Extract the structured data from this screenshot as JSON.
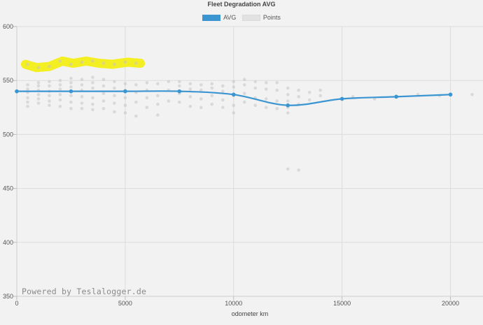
{
  "chart_data": {
    "type": "line",
    "title": "Fleet Degradation AVG",
    "xlabel": "odometer km",
    "ylabel": "",
    "xlim": [
      0,
      21500
    ],
    "ylim": [
      350,
      600
    ],
    "xticks": [
      0,
      5000,
      10000,
      15000,
      20000
    ],
    "yticks": [
      350,
      400,
      450,
      500,
      550,
      600
    ],
    "grid": true,
    "legend_position": "top-center",
    "series": [
      {
        "name": "AVG",
        "style": "line",
        "color": "#3a95d1",
        "points": [
          [
            0,
            540
          ],
          [
            2500,
            540
          ],
          [
            5000,
            540
          ],
          [
            7500,
            540
          ],
          [
            10000,
            537
          ],
          [
            12500,
            527
          ],
          [
            15000,
            533
          ],
          [
            17500,
            535
          ],
          [
            20000,
            537
          ]
        ]
      },
      {
        "name": "Points",
        "style": "scatter",
        "color": "#c4c4c4",
        "points": [
          [
            500,
            565
          ],
          [
            1000,
            562
          ],
          [
            1500,
            563
          ],
          [
            2000,
            568
          ],
          [
            2500,
            565
          ],
          [
            3000,
            567
          ],
          [
            3500,
            568
          ],
          [
            4000,
            566
          ],
          [
            4500,
            565
          ],
          [
            5000,
            567
          ],
          [
            5500,
            566
          ],
          [
            500,
            546
          ],
          [
            500,
            542
          ],
          [
            500,
            539
          ],
          [
            500,
            534
          ],
          [
            500,
            530
          ],
          [
            500,
            526
          ],
          [
            1000,
            548
          ],
          [
            1000,
            545
          ],
          [
            1000,
            541
          ],
          [
            1000,
            537
          ],
          [
            1000,
            533
          ],
          [
            1000,
            529
          ],
          [
            1500,
            549
          ],
          [
            1500,
            545
          ],
          [
            1500,
            540
          ],
          [
            1500,
            536
          ],
          [
            1500,
            531
          ],
          [
            1500,
            527
          ],
          [
            2000,
            550
          ],
          [
            2000,
            546
          ],
          [
            2000,
            542
          ],
          [
            2000,
            537
          ],
          [
            2000,
            532
          ],
          [
            2000,
            526
          ],
          [
            2500,
            552
          ],
          [
            2500,
            548
          ],
          [
            2500,
            544
          ],
          [
            2500,
            536
          ],
          [
            2500,
            530
          ],
          [
            2500,
            524
          ],
          [
            3000,
            551
          ],
          [
            3000,
            546
          ],
          [
            3000,
            541
          ],
          [
            3000,
            535
          ],
          [
            3000,
            529
          ],
          [
            3000,
            524
          ],
          [
            3500,
            553
          ],
          [
            3500,
            548
          ],
          [
            3500,
            543
          ],
          [
            3500,
            534
          ],
          [
            3500,
            528
          ],
          [
            3500,
            523
          ],
          [
            4000,
            551
          ],
          [
            4000,
            545
          ],
          [
            4000,
            538
          ],
          [
            4000,
            531
          ],
          [
            4000,
            524
          ],
          [
            4500,
            549
          ],
          [
            4500,
            543
          ],
          [
            4500,
            536
          ],
          [
            4500,
            529
          ],
          [
            4500,
            521
          ],
          [
            5000,
            547
          ],
          [
            5000,
            541
          ],
          [
            5000,
            534
          ],
          [
            5000,
            527
          ],
          [
            5000,
            520
          ],
          [
            5500,
            546
          ],
          [
            5500,
            539
          ],
          [
            5500,
            530
          ],
          [
            5500,
            517
          ],
          [
            6000,
            548
          ],
          [
            6000,
            541
          ],
          [
            6000,
            534
          ],
          [
            6000,
            525
          ],
          [
            6500,
            547
          ],
          [
            6500,
            536
          ],
          [
            6500,
            528
          ],
          [
            6500,
            518
          ],
          [
            7000,
            549
          ],
          [
            7000,
            541
          ],
          [
            7000,
            531
          ],
          [
            7500,
            549
          ],
          [
            7500,
            545
          ],
          [
            7500,
            538
          ],
          [
            7500,
            530
          ],
          [
            8000,
            547
          ],
          [
            8000,
            542
          ],
          [
            8000,
            535
          ],
          [
            8000,
            526
          ],
          [
            8500,
            546
          ],
          [
            8500,
            541
          ],
          [
            8500,
            533
          ],
          [
            8500,
            525
          ],
          [
            9000,
            547
          ],
          [
            9000,
            543
          ],
          [
            9000,
            536
          ],
          [
            9000,
            528
          ],
          [
            9500,
            545
          ],
          [
            9500,
            540
          ],
          [
            9500,
            532
          ],
          [
            9500,
            525
          ],
          [
            10000,
            549
          ],
          [
            10000,
            544
          ],
          [
            10000,
            536
          ],
          [
            10000,
            527
          ],
          [
            10000,
            520
          ],
          [
            10500,
            551
          ],
          [
            10500,
            546
          ],
          [
            10500,
            538
          ],
          [
            10500,
            530
          ],
          [
            11000,
            549
          ],
          [
            11000,
            543
          ],
          [
            11000,
            534
          ],
          [
            11000,
            527
          ],
          [
            11500,
            548
          ],
          [
            11500,
            542
          ],
          [
            11500,
            533
          ],
          [
            11500,
            525
          ],
          [
            12000,
            548
          ],
          [
            12000,
            541
          ],
          [
            12000,
            531
          ],
          [
            12000,
            524
          ],
          [
            12500,
            543
          ],
          [
            12500,
            537
          ],
          [
            12500,
            531
          ],
          [
            12500,
            525
          ],
          [
            12500,
            520
          ],
          [
            12500,
            468
          ],
          [
            13000,
            541
          ],
          [
            13000,
            535
          ],
          [
            13000,
            528
          ],
          [
            13000,
            467
          ],
          [
            13500,
            539
          ],
          [
            13500,
            532
          ],
          [
            14000,
            541
          ],
          [
            14000,
            536
          ],
          [
            15500,
            535
          ],
          [
            16500,
            533
          ],
          [
            18500,
            537
          ],
          [
            19500,
            536
          ],
          [
            21000,
            537
          ]
        ]
      }
    ]
  },
  "watermark": "Powered by Teslalogger.de"
}
